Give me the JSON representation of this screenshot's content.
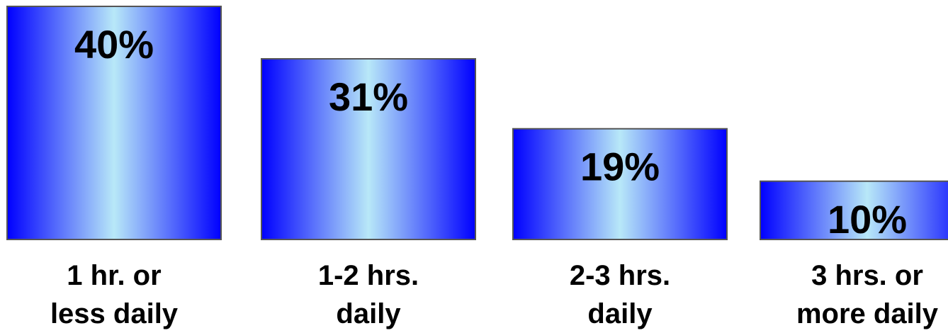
{
  "chart_data": {
    "type": "bar",
    "categories": [
      [
        "1 hr. or",
        "less daily"
      ],
      [
        "1-2 hrs.",
        "daily"
      ],
      [
        "2-3 hrs.",
        "daily"
      ],
      [
        "3 hrs. or",
        "more daily"
      ]
    ],
    "values": [
      40,
      31,
      19,
      10
    ],
    "value_labels": [
      "40%",
      "31%",
      "19%",
      "10%"
    ],
    "ylim": [
      0,
      40
    ],
    "grid": false,
    "legend": "none",
    "title": "",
    "xlabel": "",
    "ylabel": ""
  },
  "colors": {
    "bar_edge": "#0000ff",
    "bar_center": "#b8e8f8",
    "bar_border": "#555555",
    "text": "#000000"
  }
}
